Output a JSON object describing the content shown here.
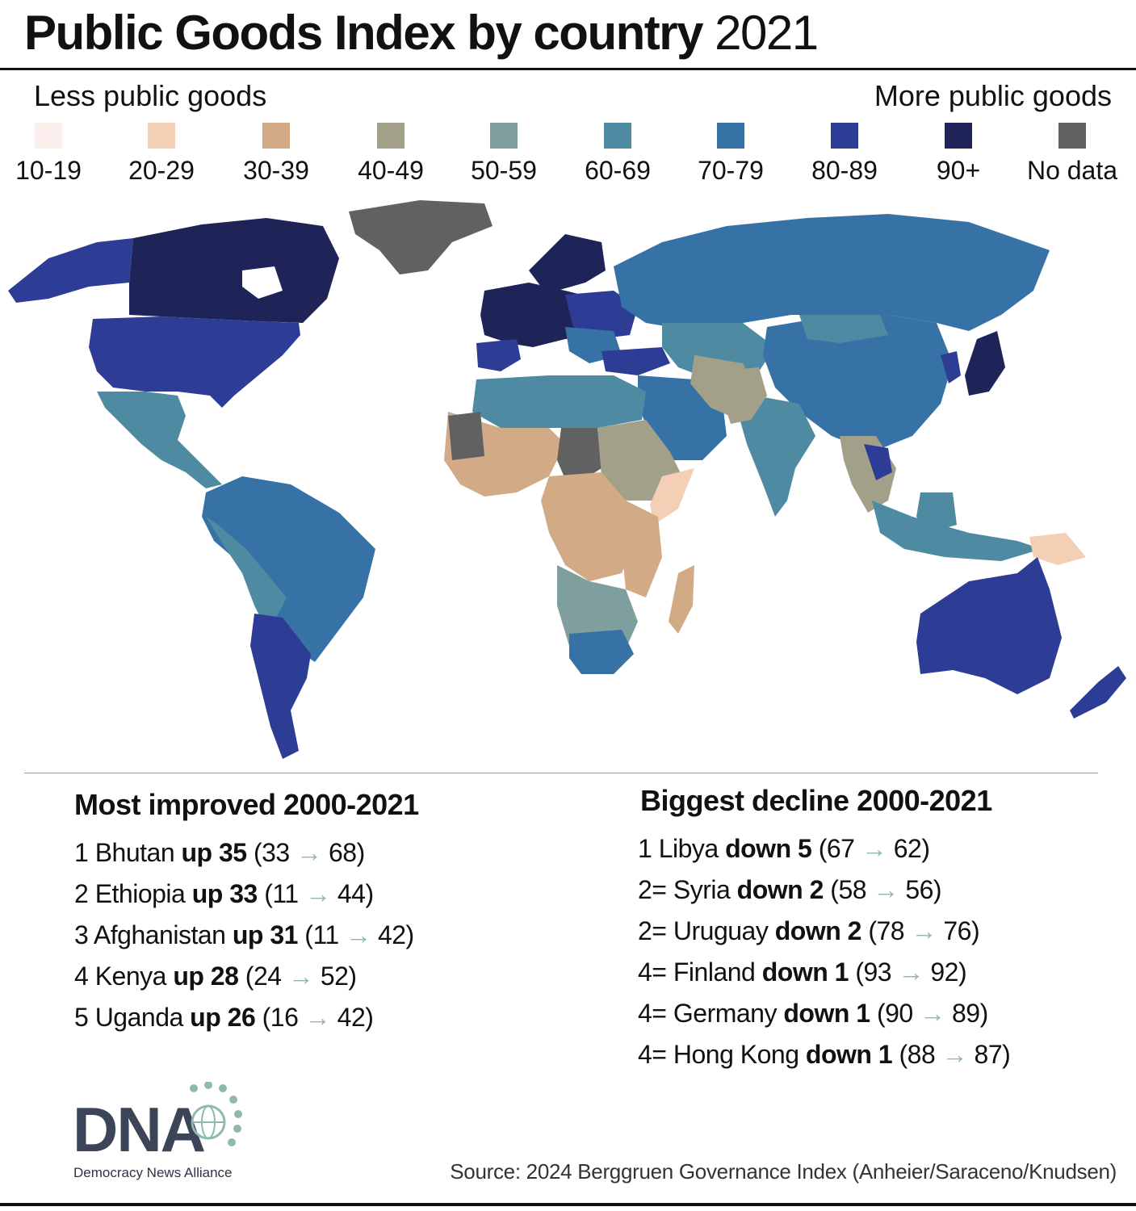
{
  "title": {
    "bold": "Public Goods Index by country",
    "year": "2021"
  },
  "legend": {
    "low_label": "Less public goods",
    "high_label": "More public goods",
    "bins": [
      {
        "label": "10-19",
        "color": "#fdeeee"
      },
      {
        "label": "20-29",
        "color": "#f3cfb6"
      },
      {
        "label": "30-39",
        "color": "#d2ab86"
      },
      {
        "label": "40-49",
        "color": "#a3a08a"
      },
      {
        "label": "50-59",
        "color": "#7e9f9e"
      },
      {
        "label": "60-69",
        "color": "#4f8aa3"
      },
      {
        "label": "70-79",
        "color": "#3672a6"
      },
      {
        "label": "80-89",
        "color": "#2d3d96"
      },
      {
        "label": "90+",
        "color": "#1e2358"
      },
      {
        "label": "No data",
        "color": "#616161"
      }
    ]
  },
  "improved": {
    "heading": "Most improved 2000-2021",
    "items": [
      {
        "rank": "1",
        "country": "Bhutan",
        "change": "up 35",
        "from": "33",
        "to": "68"
      },
      {
        "rank": "2",
        "country": "Ethiopia",
        "change": "up 33",
        "from": "11",
        "to": "44"
      },
      {
        "rank": "3",
        "country": "Afghanistan",
        "change": "up 31",
        "from": "11",
        "to": "42"
      },
      {
        "rank": "4",
        "country": "Kenya",
        "change": "up 28",
        "from": "24",
        "to": "52"
      },
      {
        "rank": "5",
        "country": "Uganda",
        "change": "up 26",
        "from": "16",
        "to": "42"
      }
    ]
  },
  "declined": {
    "heading": "Biggest decline 2000-2021",
    "items": [
      {
        "rank": "1",
        "country": "Libya",
        "change": "down 5",
        "from": "67",
        "to": "62"
      },
      {
        "rank": "2=",
        "country": "Syria",
        "change": "down 2",
        "from": "58",
        "to": "56"
      },
      {
        "rank": "2=",
        "country": "Uruguay",
        "change": "down 2",
        "from": "78",
        "to": "76"
      },
      {
        "rank": "4=",
        "country": "Finland",
        "change": "down 1",
        "from": "93",
        "to": "92"
      },
      {
        "rank": "4=",
        "country": "Germany",
        "change": "down 1",
        "from": "90",
        "to": "89"
      },
      {
        "rank": "4=",
        "country": "Hong Kong",
        "change": "down 1",
        "from": "88",
        "to": "87"
      }
    ]
  },
  "logo": {
    "wordmark": "DNA",
    "subtitle": "Democracy News Alliance"
  },
  "source": "Source: 2024 Berggruen Governance Index (Anheier/Saraceno/Knudsen)"
}
